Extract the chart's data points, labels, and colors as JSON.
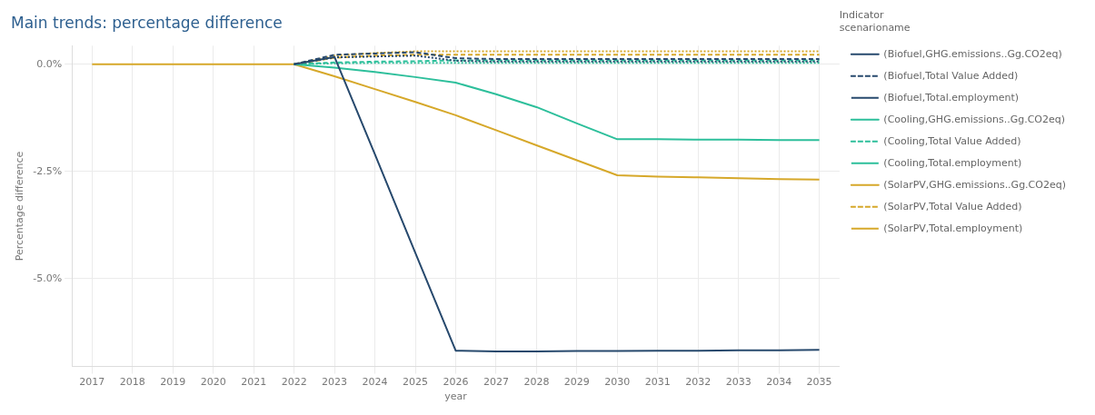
{
  "chart_data": {
    "type": "line",
    "title": "Main trends: percentage difference",
    "xlabel": "year",
    "ylabel": "Percentage difference",
    "legend_title": "Indicator\nscenarioname",
    "categories": [
      "2017",
      "2018",
      "2019",
      "2020",
      "2021",
      "2022",
      "2023",
      "2024",
      "2025",
      "2026",
      "2027",
      "2028",
      "2029",
      "2030",
      "2031",
      "2032",
      "2033",
      "2034",
      "2035"
    ],
    "series": [
      {
        "name": "(Biofuel,GHG.emissions..Gg.CO2eq)",
        "color": "#27496d",
        "line_style": "solid",
        "values": [
          null,
          null,
          null,
          null,
          null,
          0,
          0.17,
          -2.1,
          -4.4,
          -6.68,
          -6.7,
          -6.7,
          -6.69,
          -6.69,
          -6.68,
          -6.68,
          -6.67,
          -6.67,
          -6.66
        ]
      },
      {
        "name": "(Biofuel,Total Value Added)",
        "color": "#27496d",
        "line_style": "dashed",
        "values": [
          null,
          null,
          null,
          null,
          null,
          0,
          0.22,
          0.25,
          0.28,
          0.14,
          0.12,
          0.12,
          0.12,
          0.12,
          0.12,
          0.12,
          0.12,
          0.12,
          0.12
        ]
      },
      {
        "name": "(Biofuel,Total.employment)",
        "color": "#27496d",
        "line_style": "dotted",
        "values": [
          null,
          null,
          null,
          null,
          null,
          0,
          0.16,
          0.18,
          0.2,
          0.08,
          0.06,
          0.06,
          0.06,
          0.06,
          0.06,
          0.06,
          0.06,
          0.06,
          0.06
        ]
      },
      {
        "name": "(Cooling,GHG.emissions..Gg.CO2eq)",
        "color": "#2dbf9b",
        "line_style": "solid",
        "values": [
          null,
          null,
          null,
          null,
          null,
          0,
          -0.08,
          -0.18,
          -0.3,
          -0.43,
          -0.7,
          -1.0,
          -1.38,
          -1.75,
          -1.75,
          -1.76,
          -1.76,
          -1.77,
          -1.77
        ]
      },
      {
        "name": "(Cooling,Total Value Added)",
        "color": "#2dbf9b",
        "line_style": "dashed",
        "values": [
          null,
          null,
          null,
          null,
          null,
          0,
          0.04,
          0.06,
          0.07,
          0.09,
          0.09,
          0.09,
          0.09,
          0.09,
          0.09,
          0.09,
          0.09,
          0.09,
          0.09
        ]
      },
      {
        "name": "(Cooling,Total.employment)",
        "color": "#2dbf9b",
        "line_style": "dotted",
        "values": [
          null,
          null,
          null,
          null,
          null,
          0,
          0.02,
          0.03,
          0.03,
          0.03,
          0.03,
          0.03,
          0.03,
          0.03,
          0.03,
          0.03,
          0.03,
          0.03,
          0.03
        ]
      },
      {
        "name": "(SolarPV,GHG.emissions..Gg.CO2eq)",
        "color": "#d6a82a",
        "line_style": "solid",
        "values": [
          0,
          0,
          0,
          0,
          0,
          0,
          -0.28,
          -0.58,
          -0.88,
          -1.19,
          -1.54,
          -1.89,
          -2.24,
          -2.59,
          -2.62,
          -2.64,
          -2.66,
          -2.68,
          -2.69
        ]
      },
      {
        "name": "(SolarPV,Total Value Added)",
        "color": "#d6a82a",
        "line_style": "dashed",
        "values": [
          null,
          null,
          null,
          null,
          null,
          0,
          0.15,
          0.2,
          0.22,
          0.22,
          0.22,
          0.22,
          0.22,
          0.22,
          0.22,
          0.22,
          0.22,
          0.22,
          0.22
        ]
      },
      {
        "name": "(SolarPV,Total.employment)",
        "color": "#d6a82a",
        "line_style": "dotted",
        "values": [
          null,
          null,
          null,
          null,
          null,
          0,
          0.2,
          0.26,
          0.3,
          0.3,
          0.3,
          0.3,
          0.3,
          0.3,
          0.3,
          0.3,
          0.3,
          0.3,
          0.3
        ]
      }
    ],
    "ylim": [
      -7.05,
      0.43
    ],
    "yticks": [
      {
        "value": 0,
        "label": "0.0%"
      },
      {
        "value": -2.5,
        "label": "-2.5%"
      },
      {
        "value": -5,
        "label": "-5.0%"
      }
    ],
    "grid": true,
    "legend": "right"
  }
}
